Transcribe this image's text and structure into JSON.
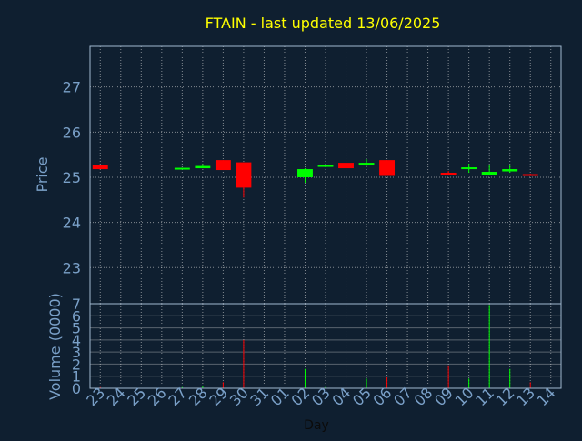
{
  "chart_data": {
    "type": "candlestick",
    "title": "FTAIN - last updated 13/06/2025",
    "xlabel": "Day",
    "price_axis": {
      "label": "Price",
      "ylim": [
        22.2,
        27.9
      ],
      "ticks": [
        23,
        24,
        25,
        26,
        27
      ]
    },
    "volume_axis": {
      "label": "Volume (0000)",
      "ylim": [
        0,
        7
      ],
      "ticks": [
        0,
        1,
        2,
        3,
        4,
        5,
        6,
        7
      ]
    },
    "x_tick_labels": [
      "23",
      "24",
      "25",
      "26",
      "27",
      "28",
      "29",
      "30",
      "31",
      "01",
      "02",
      "03",
      "04",
      "05",
      "06",
      "07",
      "08",
      "09",
      "10",
      "11",
      "12",
      "13",
      "14"
    ],
    "grid": true,
    "colors": {
      "background": "#0f1f30",
      "title": "#ffff00",
      "axis_text": "#7aa0c8",
      "plot_frame": "#a0b8d0",
      "grid": "#e0e0e0",
      "up": "#00ff00",
      "down": "#ff0000"
    },
    "candles": [
      {
        "day": "23",
        "open": 25.27,
        "close": 25.18,
        "high": 25.27,
        "low": 25.18
      },
      {
        "day": "27",
        "open": 25.18,
        "close": 25.21,
        "high": 25.21,
        "low": 25.18
      },
      {
        "day": "28",
        "open": 25.2,
        "close": 25.25,
        "high": 25.29,
        "low": 25.2
      },
      {
        "day": "29",
        "open": 25.38,
        "close": 25.16,
        "high": 25.38,
        "low": 25.16
      },
      {
        "day": "30",
        "open": 25.33,
        "close": 24.77,
        "high": 25.33,
        "low": 24.55
      },
      {
        "day": "02",
        "open": 25.0,
        "close": 25.18,
        "high": 25.2,
        "low": 24.88
      },
      {
        "day": "03",
        "open": 25.23,
        "close": 25.27,
        "high": 25.27,
        "low": 25.23
      },
      {
        "day": "04",
        "open": 25.32,
        "close": 25.2,
        "high": 25.35,
        "low": 25.2
      },
      {
        "day": "05",
        "open": 25.27,
        "close": 25.32,
        "high": 25.4,
        "low": 25.25
      },
      {
        "day": "06",
        "open": 25.38,
        "close": 25.03,
        "high": 25.38,
        "low": 25.03
      },
      {
        "day": "09",
        "open": 25.1,
        "close": 25.04,
        "high": 25.14,
        "low": 25.04
      },
      {
        "day": "10",
        "open": 25.2,
        "close": 25.22,
        "high": 25.3,
        "low": 25.1
      },
      {
        "day": "11",
        "open": 25.05,
        "close": 25.12,
        "high": 25.27,
        "low": 25.05
      },
      {
        "day": "12",
        "open": 25.13,
        "close": 25.18,
        "high": 25.27,
        "low": 25.1
      },
      {
        "day": "13",
        "open": 25.07,
        "close": 25.04,
        "high": 25.08,
        "low": 25.04
      }
    ],
    "volumes": [
      {
        "day": "23",
        "value": 0.1,
        "color": "down"
      },
      {
        "day": "27",
        "value": 0.1,
        "color": "up"
      },
      {
        "day": "28",
        "value": 0.2,
        "color": "up"
      },
      {
        "day": "29",
        "value": 0.5,
        "color": "down"
      },
      {
        "day": "30",
        "value": 4.0,
        "color": "down"
      },
      {
        "day": "02",
        "value": 1.6,
        "color": "up"
      },
      {
        "day": "03",
        "value": 0.1,
        "color": "up"
      },
      {
        "day": "04",
        "value": 0.3,
        "color": "down"
      },
      {
        "day": "05",
        "value": 0.8,
        "color": "up"
      },
      {
        "day": "06",
        "value": 0.9,
        "color": "down"
      },
      {
        "day": "09",
        "value": 1.9,
        "color": "down"
      },
      {
        "day": "10",
        "value": 0.8,
        "color": "up"
      },
      {
        "day": "11",
        "value": 6.9,
        "color": "up"
      },
      {
        "day": "12",
        "value": 1.6,
        "color": "up"
      },
      {
        "day": "13",
        "value": 0.5,
        "color": "down"
      }
    ]
  }
}
